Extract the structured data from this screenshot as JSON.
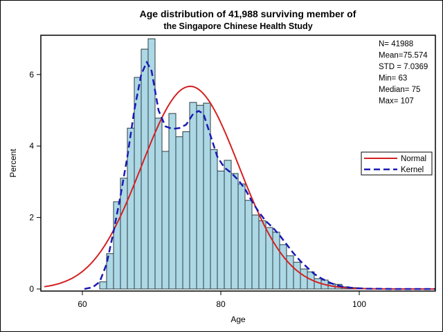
{
  "chart_data": {
    "type": "bar",
    "title": "Age distribution of 41,988 surviving member of",
    "subtitle": "the Singapore Chinese Health Study",
    "xlabel": "Age",
    "ylabel": "Percent",
    "xlim": [
      54.5,
      111
    ],
    "ylim": [
      0,
      7.2
    ],
    "xticks": [
      60,
      80,
      100
    ],
    "yticks": [
      0,
      2,
      4,
      6
    ],
    "grid": false,
    "bins": {
      "width": 1,
      "centers": [
        63,
        64,
        65,
        66,
        67,
        68,
        69,
        70,
        71,
        72,
        73,
        74,
        75,
        76,
        77,
        78,
        79,
        80,
        81,
        82,
        83,
        84,
        85,
        86,
        87,
        88,
        89,
        90,
        91,
        92,
        93,
        94,
        95,
        96,
        97,
        98,
        99,
        100,
        101
      ],
      "values": [
        0.2,
        0.99,
        2.44,
        3.1,
        4.5,
        5.92,
        6.71,
        7.0,
        4.78,
        3.85,
        4.91,
        4.26,
        4.4,
        5.22,
        5.14,
        5.2,
        3.9,
        3.3,
        3.6,
        3.23,
        2.94,
        2.48,
        2.07,
        1.91,
        1.72,
        1.59,
        1.24,
        0.93,
        0.75,
        0.56,
        0.48,
        0.29,
        0.25,
        0.15,
        0.13,
        0.06,
        0.04,
        0.03,
        0.02
      ]
    },
    "stats": [
      "N= 41988",
      "Mean=75.574",
      "STD = 7.0369",
      "Min=  63",
      "Median=  75",
      "Max= 107"
    ],
    "series": [
      {
        "name": "Normal",
        "color": "#d42020",
        "style": "solid",
        "mean": 75.574,
        "std": 7.0369
      },
      {
        "name": "Kernel",
        "color": "#1a1ab4",
        "style": "dashed",
        "x": [
          60.3,
          61.5,
          62.5,
          63.5,
          64.5,
          65.5,
          66.5,
          67.5,
          68.5,
          69.3,
          70,
          71,
          72,
          73,
          74,
          75,
          76,
          76.8,
          77.5,
          78.5,
          79.5,
          80.5,
          81.5,
          82.5,
          83.5,
          84.5,
          85.5,
          86.5,
          87.5,
          88.5,
          89.5,
          90.5,
          91.5,
          92.5,
          93.5,
          94.5,
          95.5,
          96.5,
          97.5,
          99,
          101,
          105,
          111
        ],
        "y": [
          0,
          0.05,
          0.2,
          0.7,
          1.6,
          2.6,
          3.7,
          5.0,
          6.0,
          6.35,
          6.1,
          5.0,
          4.55,
          4.48,
          4.5,
          4.6,
          4.9,
          4.98,
          4.9,
          4.3,
          3.7,
          3.4,
          3.25,
          3.05,
          2.8,
          2.45,
          2.15,
          1.9,
          1.72,
          1.5,
          1.25,
          1.0,
          0.78,
          0.6,
          0.42,
          0.3,
          0.2,
          0.12,
          0.07,
          0.03,
          0.01,
          0,
          0
        ]
      }
    ],
    "legend": {
      "placement": "right",
      "entries": [
        "Normal",
        "Kernel"
      ]
    },
    "bar_color": "#add8e6"
  }
}
